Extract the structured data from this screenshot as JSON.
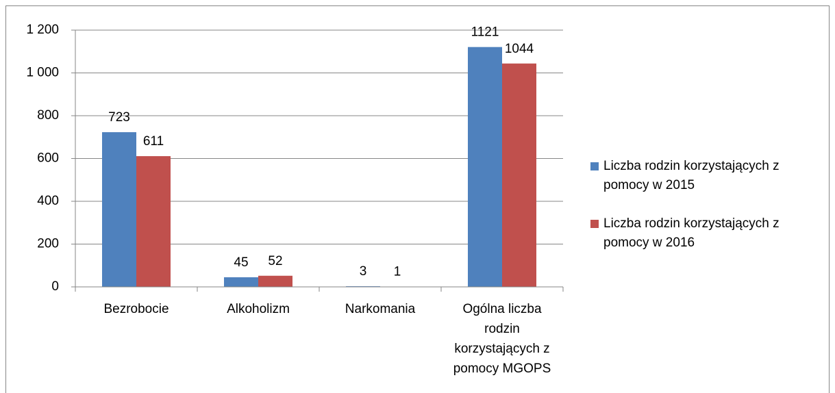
{
  "chart_data": {
    "type": "bar",
    "categories": [
      "Bezrobocie",
      "Alkoholizm",
      "Narkomania",
      "Ogólna liczba rodzin korzystających z pomocy MGOPS"
    ],
    "series": [
      {
        "name": "Liczba rodzin korzystających z pomocy w 2015",
        "color": "#4f81bd",
        "values": [
          723,
          45,
          3,
          1121
        ]
      },
      {
        "name": "Liczba rodzin korzystających z pomocy w 2016",
        "color": "#c0504d",
        "values": [
          611,
          52,
          1,
          1044
        ]
      }
    ],
    "ylim": [
      0,
      1200
    ],
    "yticks": [
      0,
      200,
      400,
      600,
      800,
      {
        "value": 1000,
        "label": "1 000"
      },
      {
        "value": 1200,
        "label": "1 200"
      }
    ],
    "grid": true,
    "legend": "right"
  }
}
